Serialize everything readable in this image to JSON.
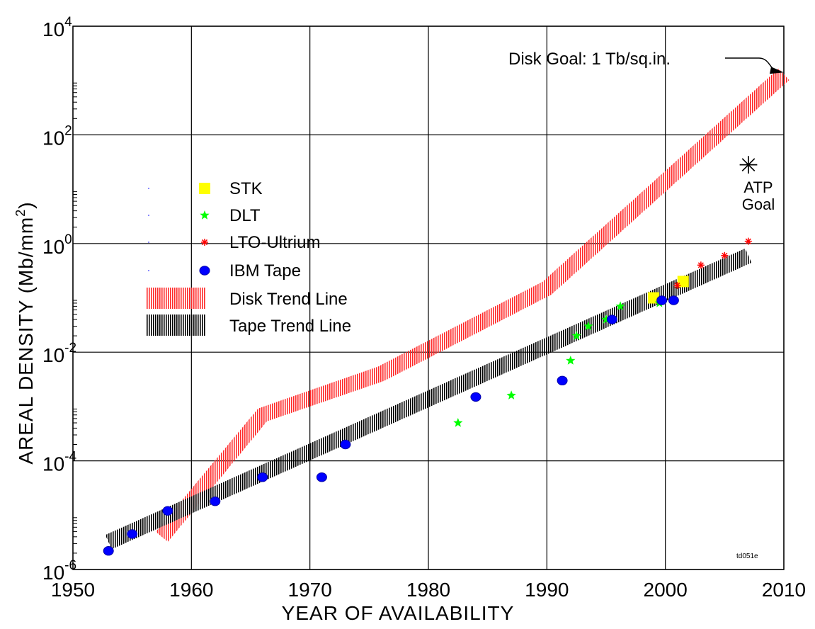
{
  "chart_data": {
    "type": "scatter",
    "title": "",
    "xlabel": "YEAR OF AVAILABILITY",
    "ylabel_main": "AREAL DENSITY (Mb/mm",
    "ylabel_sup": "2",
    "ylabel_close": ")",
    "xlim": [
      1950,
      2010
    ],
    "ylim": [
      1e-06,
      10000
    ],
    "y_scale": "log",
    "grid": true,
    "x_ticks": [
      "1950",
      "1960",
      "1970",
      "1980",
      "1990",
      "2000",
      "2010"
    ],
    "y_ticks": [
      {
        "exp": -6,
        "base": "10",
        "power": "-6"
      },
      {
        "exp": -4,
        "base": "10",
        "power": "-4"
      },
      {
        "exp": -2,
        "base": "10",
        "power": "-2"
      },
      {
        "exp": 0,
        "base": "10",
        "power": "0"
      },
      {
        "exp": 2,
        "base": "10",
        "power": "2"
      },
      {
        "exp": 4,
        "base": "10",
        "power": "4"
      }
    ],
    "legend_position": "center-left",
    "series": [
      {
        "name": "STK",
        "marker": "square",
        "color": "#ffff00",
        "points": [
          [
            1999.0,
            0.1
          ],
          [
            2001.5,
            0.2
          ]
        ]
      },
      {
        "name": "DLT",
        "marker": "star",
        "color": "#00ff00",
        "points": [
          [
            1982.5,
            0.0005
          ],
          [
            1987.0,
            0.0016
          ],
          [
            1992.0,
            0.007
          ],
          [
            1992.5,
            0.02
          ],
          [
            1993.5,
            0.03
          ],
          [
            1995.0,
            0.04
          ],
          [
            1996.2,
            0.07
          ],
          [
            1999.5,
            0.08
          ]
        ]
      },
      {
        "name": "LTO-Ultrium",
        "marker": "asterisk",
        "color": "#ff0000",
        "points": [
          [
            2001.0,
            0.17
          ],
          [
            2003.0,
            0.4
          ],
          [
            2005.0,
            0.6
          ],
          [
            2007.0,
            1.1
          ]
        ]
      },
      {
        "name": "IBM Tape",
        "marker": "circle",
        "color": "#0000ff",
        "points": [
          [
            1953.0,
            2.2e-06
          ],
          [
            1955.0,
            4.5e-06
          ],
          [
            1958.0,
            1.2e-05
          ],
          [
            1962.0,
            1.8e-05
          ],
          [
            1966.0,
            5e-05
          ],
          [
            1971.0,
            5e-05
          ],
          [
            1973.0,
            0.0002
          ],
          [
            1984.0,
            0.0015
          ],
          [
            1991.3,
            0.003
          ],
          [
            1995.5,
            0.04
          ],
          [
            1999.7,
            0.09
          ],
          [
            2000.7,
            0.09
          ]
        ]
      }
    ],
    "trend_lines": [
      {
        "name": "Disk Trend Line",
        "color": "#ff0000",
        "points": [
          [
            1957.5,
            4e-06
          ],
          [
            1966.0,
            0.0007
          ],
          [
            1976.0,
            0.004
          ],
          [
            1990.0,
            0.15
          ],
          [
            2010.0,
            1300
          ]
        ]
      },
      {
        "name": "Tape Trend Line",
        "color": "#000000",
        "points": [
          [
            1953.0,
            3.2e-06
          ],
          [
            2007.0,
            0.6
          ]
        ]
      }
    ],
    "annotations": {
      "disk_goal": {
        "text": "Disk Goal: 1 Tb/sq.in.",
        "x": 2010,
        "y": 1500
      },
      "atp_goal": {
        "line1": "ATP",
        "line2": "Goal",
        "x": 2007.5,
        "y": 25
      },
      "code": "td051e"
    }
  }
}
